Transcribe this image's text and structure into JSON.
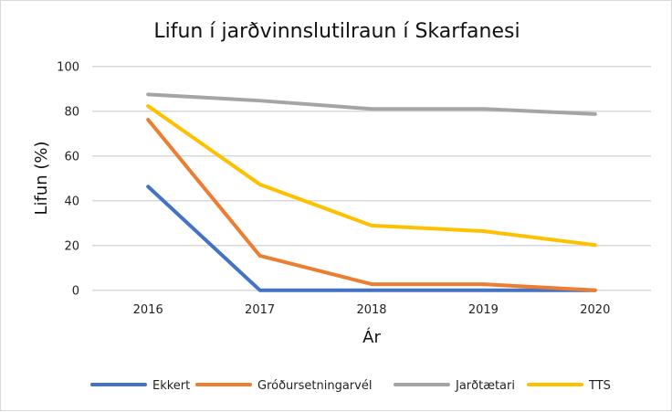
{
  "chart_data": {
    "type": "line",
    "title": "Lifun í jarðvinnslutilraun í Skarfanesi",
    "xlabel": "Ár",
    "ylabel": "Lifun (%)",
    "categories": [
      "2016",
      "2017",
      "2018",
      "2019",
      "2020"
    ],
    "ylim": [
      0,
      100
    ],
    "yticks": [
      "0",
      "20",
      "40",
      "60",
      "80",
      "100"
    ],
    "grid": true,
    "legend_position": "bottom",
    "series": [
      {
        "name": "Ekkert",
        "color": "#4472C4",
        "values": [
          46.3,
          0,
          0,
          0,
          0
        ]
      },
      {
        "name": "Gróðursetningarvél",
        "color": "#ED7D31",
        "values": [
          76.2,
          15.4,
          2.7,
          2.7,
          0
        ]
      },
      {
        "name": "Jarðtætari",
        "color": "#A5A5A5",
        "values": [
          87.5,
          84.7,
          81,
          81,
          78.7
        ]
      },
      {
        "name": "TTS",
        "color": "#FFC000",
        "values": [
          82.3,
          47.3,
          28.9,
          26.4,
          20.2
        ]
      }
    ]
  }
}
